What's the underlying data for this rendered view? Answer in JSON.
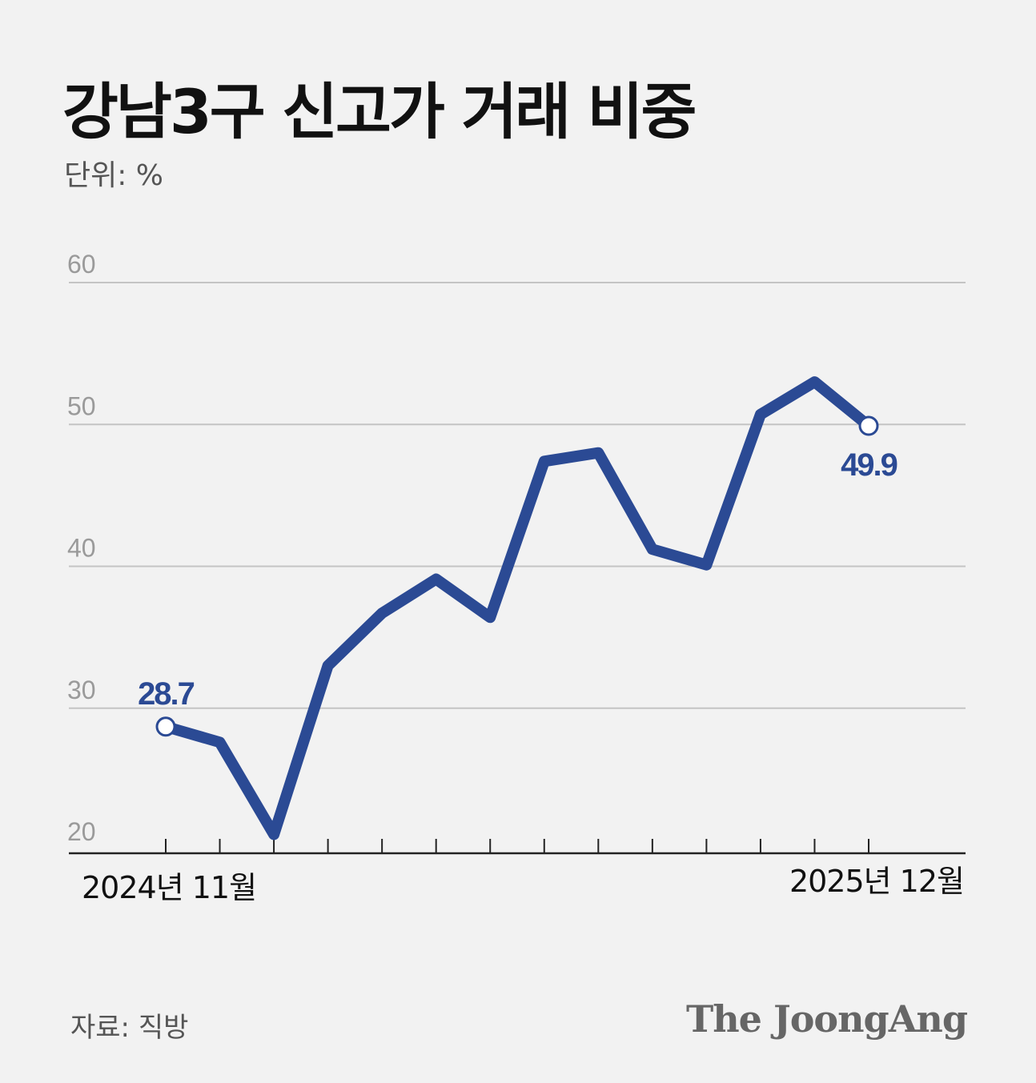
{
  "title": "강남3구 신고가 거래 비중",
  "unit_label": "단위: %",
  "source": "자료: 직방",
  "brand": "The JoongAng",
  "colors": {
    "line": "#2b4a94",
    "grid": "#c4c4c4",
    "axis": "#222222",
    "tick_label": "#9a9a9a"
  },
  "chart_data": {
    "type": "line",
    "title": "강남3구 신고가 거래 비중",
    "ylabel": "단위: %",
    "ylim": [
      20,
      60
    ],
    "yticks": [
      "20",
      "30",
      "40",
      "50",
      "60"
    ],
    "x_start_label": "2024년 11월",
    "x_end_label": "2025년 12월",
    "series": [
      {
        "values": [
          28.7,
          27.6,
          21.1,
          33.0,
          36.7,
          39.1,
          36.4,
          47.4,
          48.0,
          41.2,
          40.1,
          50.7,
          53.0,
          49.9
        ]
      }
    ],
    "annotations": [
      {
        "index": 0,
        "text": "28.7"
      },
      {
        "index": 13,
        "text": "49.9"
      }
    ]
  }
}
